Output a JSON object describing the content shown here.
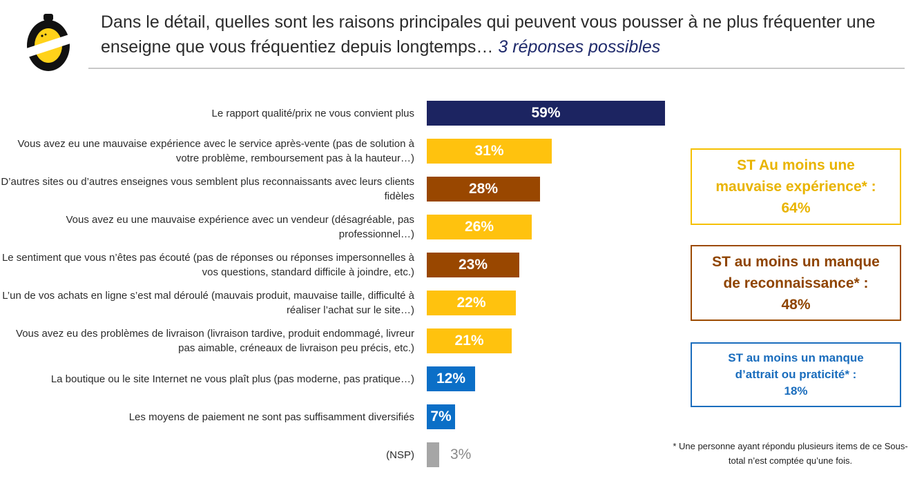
{
  "header": {
    "title_main": "Dans le détail, quelles sont les raisons principales qui peuvent vous pousser à ne plus fréquenter une enseigne que vous fréquentiez depuis longtemps… ",
    "title_accent": "3 réponses possibles"
  },
  "colors": {
    "navy": "#1c2461",
    "yellow": "#ffc20e",
    "brown": "#994700",
    "blue": "#0b6fc7",
    "grey": "#a6a6a6"
  },
  "chart_data": {
    "type": "bar",
    "orientation": "horizontal",
    "categories": [
      "Le rapport qualité/prix ne vous convient plus",
      "Vous avez eu une mauvaise expérience avec le service après-vente (pas de solution à votre problème, remboursement pas à la hauteur…)",
      "D’autres sites ou d’autres enseignes vous semblent plus reconnaissants avec leurs clients fidèles",
      "Vous avez eu une mauvaise expérience avec un vendeur (désagréable, pas professionnel…)",
      "Le sentiment que vous n’êtes pas écouté (pas de réponses ou réponses impersonnelles à vos questions, standard difficile à joindre, etc.)",
      "L’un de vos achats en ligne s’est mal déroulé (mauvais produit, mauvaise taille, difficulté à réaliser l’achat sur le site…)",
      "Vous avez eu des problèmes de livraison (livraison tardive, produit endommagé, livreur pas aimable, créneaux de livraison peu précis, etc.)",
      "La boutique ou le site Internet ne vous plaît plus (pas moderne, pas pratique…)",
      "Les moyens de paiement ne sont pas suffisamment diversifiés",
      "(NSP)"
    ],
    "values": [
      59,
      31,
      28,
      26,
      23,
      22,
      21,
      12,
      7,
      3
    ],
    "value_labels": [
      "59%",
      "31%",
      "28%",
      "26%",
      "23%",
      "22%",
      "21%",
      "12%",
      "7%",
      "3%"
    ],
    "bar_colors": [
      "navy",
      "yellow",
      "brown",
      "yellow",
      "brown",
      "yellow",
      "yellow",
      "blue",
      "blue",
      "grey"
    ],
    "xlim": [
      0,
      59
    ]
  },
  "subtotals": [
    {
      "text": "ST Au moins une mauvaise expérience* : 64%"
    },
    {
      "text": "ST au moins un manque de reconnaissance* : 48%"
    },
    {
      "text": "ST au moins un manque d’attrait ou praticité* : 18%"
    }
  ],
  "footnote": "* Une personne ayant répondu plusieurs items de ce Sous-total n’est comptée qu’une fois."
}
